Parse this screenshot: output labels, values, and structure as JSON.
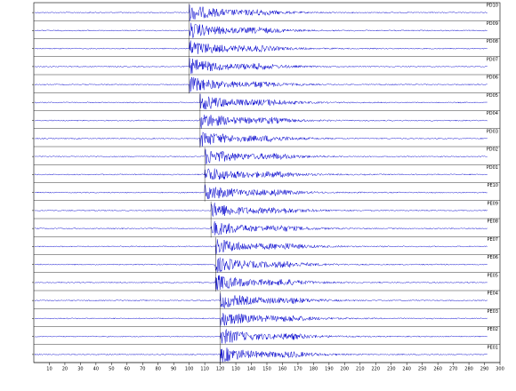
{
  "chart_data": {
    "type": "seismogram",
    "color": "#0000cc",
    "xlim": [
      0,
      300
    ],
    "xticks": [
      10,
      20,
      30,
      40,
      50,
      60,
      70,
      80,
      90,
      100,
      110,
      120,
      130,
      140,
      150,
      160,
      170,
      180,
      190,
      200,
      210,
      220,
      230,
      240,
      250,
      260,
      270,
      280,
      290,
      300
    ],
    "series": [
      {
        "name": "PD10",
        "onset": 100
      },
      {
        "name": "PD09",
        "onset": 100
      },
      {
        "name": "PD08",
        "onset": 100
      },
      {
        "name": "PD07",
        "onset": 100
      },
      {
        "name": "PD06",
        "onset": 100
      },
      {
        "name": "PD05",
        "onset": 107
      },
      {
        "name": "PD04",
        "onset": 107
      },
      {
        "name": "PD03",
        "onset": 107
      },
      {
        "name": "PD02",
        "onset": 110
      },
      {
        "name": "PD01",
        "onset": 110
      },
      {
        "name": "PE10",
        "onset": 110
      },
      {
        "name": "PE09",
        "onset": 114
      },
      {
        "name": "PE08",
        "onset": 114
      },
      {
        "name": "PE07",
        "onset": 117
      },
      {
        "name": "PE06",
        "onset": 117
      },
      {
        "name": "PE05",
        "onset": 117
      },
      {
        "name": "PE04",
        "onset": 120
      },
      {
        "name": "PE03",
        "onset": 120
      },
      {
        "name": "PE02",
        "onset": 120
      },
      {
        "name": "PE01",
        "onset": 120
      }
    ]
  }
}
